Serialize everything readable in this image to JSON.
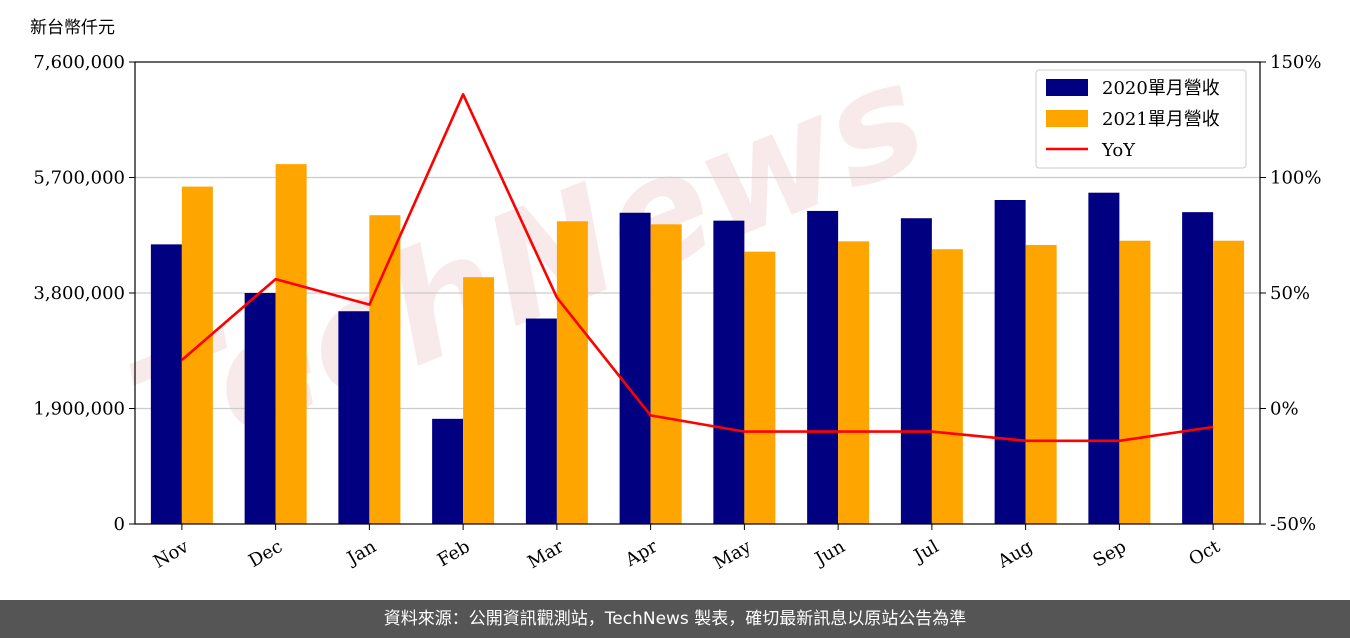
{
  "watermark": "TechNews",
  "footer": {
    "source": "資料來源：公開資訊觀測站，TechNews 製表，確切最新訊息以原站公告為準"
  },
  "colors": {
    "series_2020": "#000080",
    "series_2021": "#FFA500",
    "yoy": "#FF0000",
    "footer_bg": "#555555"
  },
  "chart_data": {
    "type": "bar",
    "y_unit_label": "新台幣仟元",
    "categories": [
      "Nov",
      "Dec",
      "Jan",
      "Feb",
      "Mar",
      "Apr",
      "May",
      "Jun",
      "Jul",
      "Aug",
      "Sep",
      "Oct"
    ],
    "series": [
      {
        "name": "2020單月營收",
        "values": [
          4600000,
          3800000,
          3500000,
          1730000,
          3380000,
          5120000,
          4990000,
          5150000,
          5030000,
          5330000,
          5450000,
          5130000
        ]
      },
      {
        "name": "2021單月營收",
        "values": [
          5550000,
          5920000,
          5080000,
          4060000,
          4980000,
          4930000,
          4480000,
          4650000,
          4520000,
          4590000,
          4660000,
          4660000
        ]
      }
    ],
    "line_series": {
      "name": "YoY",
      "axis": "right",
      "values": [
        21,
        56,
        45,
        136,
        48,
        -3,
        -10,
        -10,
        -10,
        -14,
        -14,
        -8
      ]
    },
    "ylim": [
      0,
      7600000
    ],
    "y_ticks": [
      "0",
      "1,900,000",
      "3,800,000",
      "5,700,000",
      "7,600,000"
    ],
    "y2lim": [
      -50,
      150
    ],
    "y2_ticks": [
      "-50%",
      "0%",
      "50%",
      "100%",
      "150%"
    ],
    "grid": "horizontal",
    "legend_position": "top-right"
  }
}
